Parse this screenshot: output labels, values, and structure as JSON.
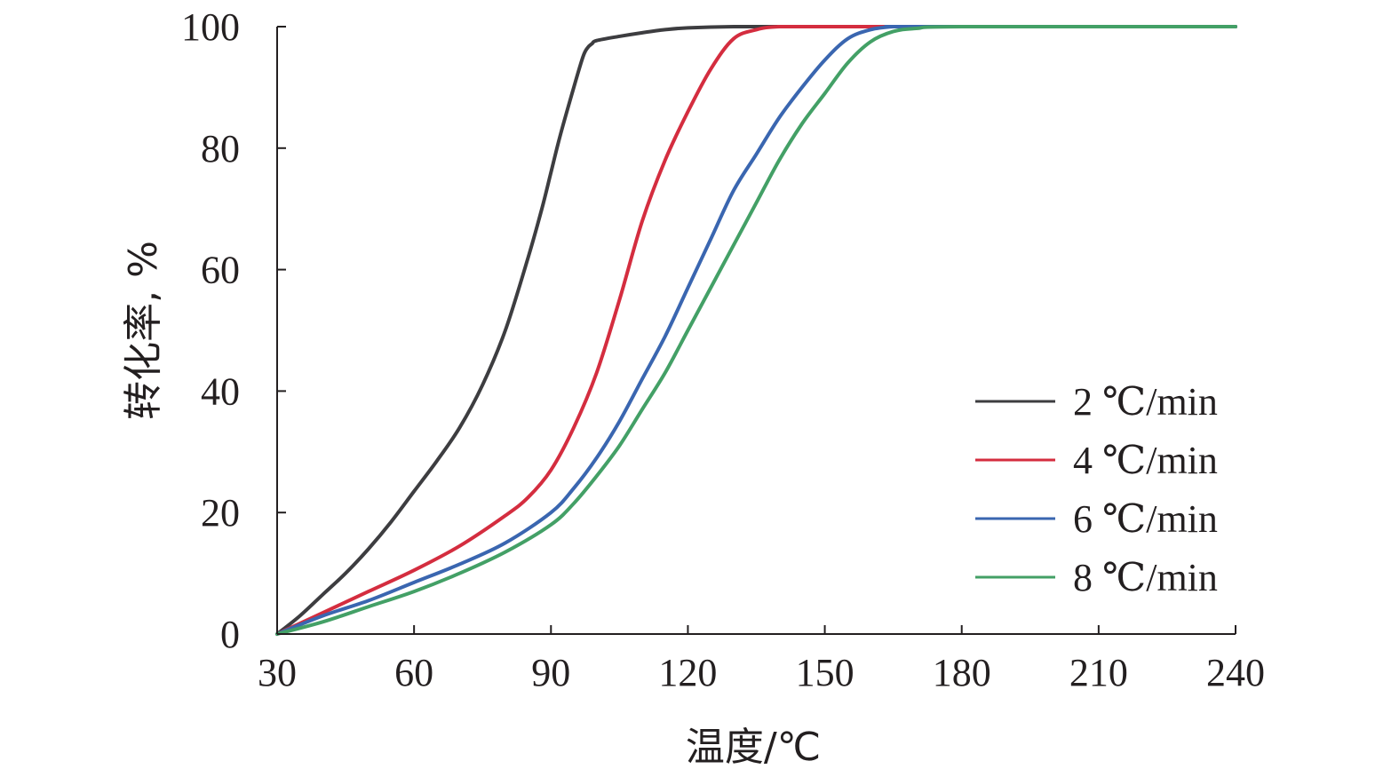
{
  "chart_data": {
    "type": "line",
    "title": "",
    "xlabel": "温度/℃",
    "ylabel": "转化率, %",
    "xlim": [
      30,
      240
    ],
    "ylim": [
      0,
      100
    ],
    "xticks": [
      30,
      60,
      90,
      120,
      150,
      180,
      210,
      240
    ],
    "yticks": [
      0,
      20,
      40,
      60,
      80,
      100
    ],
    "grid": false,
    "legend_position": "bottom-right",
    "series": [
      {
        "name": "2 ℃/min",
        "color": "#3d3d40",
        "x": [
          30,
          35,
          40,
          45,
          50,
          55,
          60,
          65,
          70,
          75,
          80,
          85,
          88,
          90,
          92,
          95,
          97,
          98,
          99,
          100,
          105,
          110,
          115,
          120,
          130,
          150,
          240
        ],
        "y": [
          0,
          3,
          6.5,
          10,
          14,
          18.5,
          23.5,
          28.5,
          34,
          41,
          50,
          62,
          70,
          76,
          82,
          90,
          95,
          96.5,
          97.2,
          97.7,
          98.4,
          99,
          99.5,
          99.8,
          100,
          100,
          100
        ]
      },
      {
        "name": "4 ℃/min",
        "color": "#d42d3f",
        "x": [
          30,
          40,
          50,
          60,
          70,
          80,
          85,
          90,
          95,
          100,
          105,
          110,
          115,
          120,
          125,
          130,
          135,
          140,
          150,
          240
        ],
        "y": [
          0,
          3.5,
          7,
          10.5,
          14.5,
          19.5,
          22.5,
          27,
          34,
          43,
          55,
          68,
          78,
          86,
          93,
          98,
          99.5,
          100,
          100,
          100
        ]
      },
      {
        "name": "6 ℃/min",
        "color": "#3a66b0",
        "x": [
          30,
          40,
          50,
          60,
          70,
          80,
          90,
          95,
          100,
          105,
          110,
          115,
          120,
          125,
          130,
          135,
          140,
          145,
          150,
          155,
          160,
          165,
          170,
          240
        ],
        "y": [
          0,
          3,
          5.5,
          8.5,
          11.5,
          15,
          20,
          24,
          29,
          35,
          42,
          49,
          57,
          65,
          73,
          79,
          85,
          90,
          94.5,
          98,
          99.5,
          100,
          100,
          100
        ]
      },
      {
        "name": "8 ℃/min",
        "color": "#43a066",
        "x": [
          30,
          40,
          50,
          60,
          70,
          80,
          90,
          95,
          100,
          105,
          110,
          115,
          120,
          125,
          130,
          135,
          140,
          145,
          150,
          155,
          160,
          165,
          170,
          180,
          240
        ],
        "y": [
          0,
          2,
          4.5,
          7,
          10,
          13.5,
          18,
          21.5,
          26,
          31,
          37,
          43,
          50,
          57,
          64,
          71,
          78,
          84,
          89,
          94,
          97.5,
          99.2,
          99.7,
          100,
          100
        ]
      }
    ]
  }
}
